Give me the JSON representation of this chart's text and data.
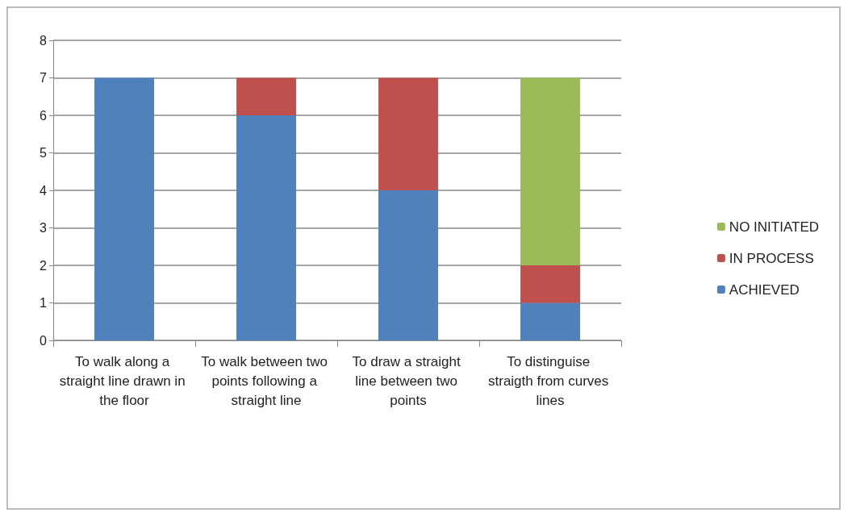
{
  "chart_data": {
    "type": "bar",
    "stacked": true,
    "categories": [
      "To walk along a straight line drawn in the floor",
      "To walk between two points following a straight line",
      "To draw a straight line between two points",
      "To distinguise straigth from curves lines"
    ],
    "series": [
      {
        "name": "ACHIEVED",
        "color": "#4f81bd",
        "values": [
          7,
          6,
          4,
          1
        ]
      },
      {
        "name": "IN PROCESS",
        "color": "#c0504d",
        "values": [
          0,
          1,
          3,
          1
        ]
      },
      {
        "name": "NO INITIATED",
        "color": "#9bbb59",
        "values": [
          0,
          0,
          0,
          5
        ]
      }
    ],
    "ylim": [
      0,
      8
    ],
    "yticks": [
      0,
      1,
      2,
      3,
      4,
      5,
      6,
      7,
      8
    ],
    "grid": "y",
    "legend": "right"
  }
}
